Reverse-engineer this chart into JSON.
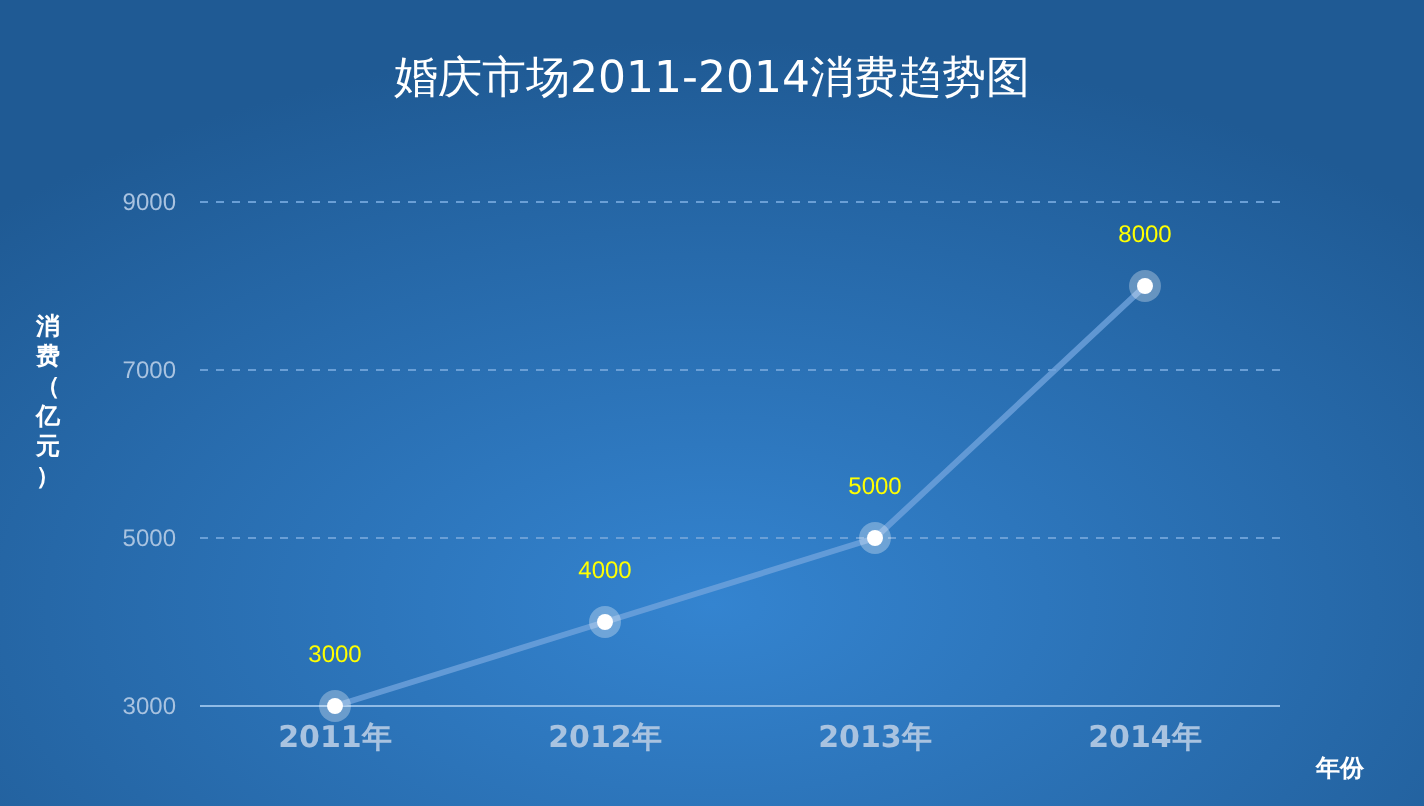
{
  "chart_data": {
    "type": "line",
    "title": "婚庆市场2011-2014消费趋势图",
    "xlabel": "年份",
    "ylabel": "消费（亿元）",
    "categories": [
      "2011年",
      "2012年",
      "2013年",
      "2014年"
    ],
    "series": [
      {
        "color": "#6fa3dc",
        "values": [
          3000,
          4000,
          5000,
          8000
        ]
      }
    ],
    "ylim": [
      3000,
      9000
    ],
    "yticks": [
      3000,
      5000,
      7000,
      9000
    ],
    "grid": "y",
    "marker": "circle",
    "line_style": "solid",
    "data_labels": true
  }
}
